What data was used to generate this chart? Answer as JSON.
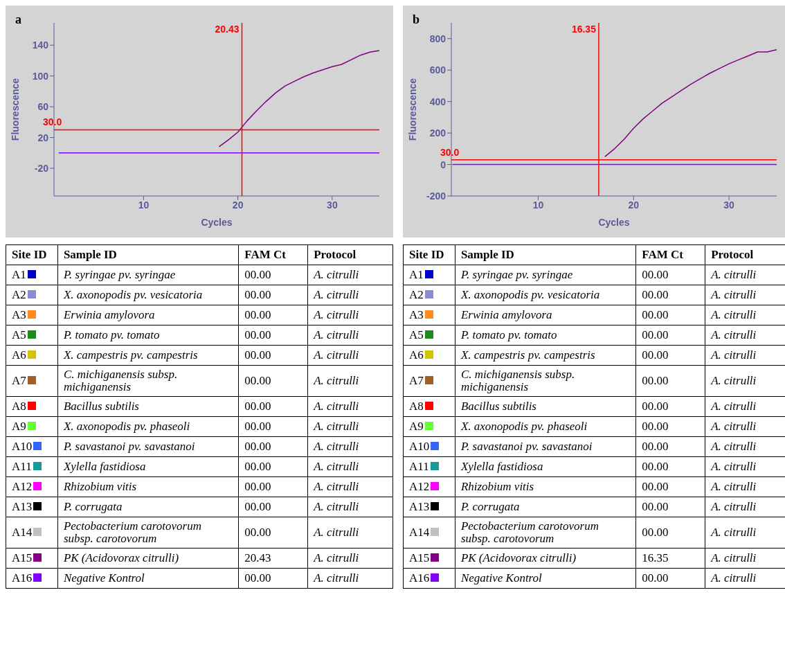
{
  "chart_data": [
    {
      "type": "line",
      "title": "a",
      "xlabel": "Cycles",
      "ylabel": "Fluorescence",
      "x": [
        1,
        5,
        10,
        14,
        15,
        16,
        17,
        18,
        19,
        20,
        21,
        22,
        23,
        24,
        25,
        26,
        27,
        28,
        29,
        30,
        31,
        32,
        33,
        34,
        35
      ],
      "xlim": [
        0.5,
        35
      ],
      "xticks": [
        10,
        20,
        30
      ],
      "ylim": [
        -56,
        169
      ],
      "yticks": [
        -20,
        20,
        60,
        100,
        140
      ],
      "grid": false,
      "legend": "bottom",
      "marker": "none",
      "line_style": "solid",
      "ref_lines": [
        {
          "axis": "x",
          "value": 20.43,
          "label": "20.43",
          "color": "#ff0000"
        },
        {
          "axis": "y",
          "value": 30,
          "label": "30.0",
          "color": "#ff0000"
        }
      ],
      "series": [
        {
          "name": "A1",
          "color": "#0000cc",
          "values": [
            null,
            null,
            null,
            null,
            null,
            null,
            null,
            null,
            null,
            null,
            null,
            null,
            null,
            null,
            null,
            null,
            null,
            null,
            null,
            null,
            null,
            null,
            null,
            null,
            null
          ]
        },
        {
          "name": "A2",
          "color": "#8c8cd0",
          "values": [
            null,
            null,
            null,
            null,
            null,
            null,
            null,
            null,
            null,
            null,
            null,
            null,
            null,
            null,
            null,
            null,
            null,
            null,
            null,
            null,
            null,
            null,
            null,
            null,
            null
          ]
        },
        {
          "name": "A3",
          "color": "#ff8c1a",
          "values": [
            null,
            null,
            null,
            null,
            null,
            null,
            null,
            null,
            null,
            null,
            null,
            null,
            null,
            null,
            null,
            null,
            null,
            null,
            null,
            null,
            null,
            null,
            null,
            null,
            null
          ]
        },
        {
          "name": "A5",
          "color": "#1a8c1a",
          "values": [
            null,
            null,
            null,
            null,
            null,
            null,
            null,
            null,
            null,
            null,
            null,
            null,
            null,
            null,
            null,
            null,
            null,
            null,
            null,
            null,
            null,
            null,
            null,
            null,
            null
          ]
        },
        {
          "name": "A6",
          "color": "#d4c400",
          "values": [
            null,
            null,
            null,
            null,
            null,
            null,
            null,
            null,
            null,
            null,
            null,
            null,
            null,
            null,
            null,
            null,
            null,
            null,
            null,
            null,
            null,
            null,
            null,
            null,
            null
          ]
        },
        {
          "name": "A7",
          "color": "#a0602c",
          "values": [
            null,
            null,
            null,
            null,
            null,
            null,
            null,
            null,
            null,
            null,
            null,
            null,
            null,
            null,
            null,
            null,
            null,
            null,
            null,
            null,
            null,
            null,
            null,
            null,
            null
          ]
        },
        {
          "name": "A8",
          "color": "#ff0000",
          "values": [
            null,
            null,
            null,
            null,
            null,
            null,
            null,
            null,
            null,
            null,
            null,
            null,
            null,
            null,
            null,
            null,
            null,
            null,
            null,
            null,
            null,
            null,
            null,
            null,
            null
          ]
        },
        {
          "name": "A9",
          "color": "#66ff33",
          "values": [
            null,
            null,
            null,
            null,
            null,
            null,
            null,
            null,
            null,
            null,
            null,
            null,
            null,
            null,
            null,
            null,
            null,
            null,
            null,
            null,
            null,
            null,
            null,
            null,
            null
          ]
        },
        {
          "name": "A10",
          "color": "#3366ff",
          "values": [
            null,
            null,
            null,
            null,
            null,
            null,
            null,
            null,
            null,
            null,
            null,
            null,
            null,
            null,
            null,
            null,
            null,
            null,
            null,
            null,
            null,
            null,
            null,
            null,
            null
          ]
        },
        {
          "name": "A11",
          "color": "#1a9999",
          "values": [
            null,
            null,
            null,
            null,
            null,
            null,
            null,
            null,
            null,
            null,
            null,
            null,
            null,
            null,
            null,
            null,
            null,
            null,
            null,
            null,
            null,
            null,
            null,
            null,
            null
          ]
        },
        {
          "name": "A12",
          "color": "#ff00ff",
          "values": [
            null,
            null,
            null,
            null,
            null,
            null,
            null,
            null,
            null,
            null,
            null,
            null,
            null,
            null,
            null,
            null,
            null,
            null,
            null,
            null,
            null,
            null,
            null,
            null,
            null
          ]
        },
        {
          "name": "A13",
          "color": "#000000",
          "values": [
            null,
            null,
            null,
            null,
            null,
            null,
            null,
            null,
            null,
            null,
            null,
            null,
            null,
            null,
            null,
            null,
            null,
            null,
            null,
            null,
            null,
            null,
            null,
            null,
            null
          ]
        },
        {
          "name": "A14",
          "color": "#c0c0c0",
          "values": [
            null,
            null,
            null,
            null,
            null,
            null,
            null,
            null,
            null,
            null,
            null,
            null,
            null,
            null,
            null,
            null,
            null,
            null,
            null,
            null,
            null,
            null,
            null,
            null,
            null
          ]
        },
        {
          "name": "A15",
          "color": "#800080",
          "values": [
            null,
            null,
            null,
            null,
            null,
            null,
            null,
            8,
            17,
            27,
            42,
            55,
            67,
            78,
            87,
            93,
            99,
            104,
            108,
            112,
            115,
            121,
            127,
            131,
            133
          ]
        },
        {
          "name": "A16",
          "color": "#8000ff",
          "values": [
            0,
            0,
            0,
            0,
            0,
            0,
            0,
            0,
            0,
            0,
            0,
            0,
            0,
            0,
            0,
            0,
            0,
            0,
            0,
            0,
            0,
            0,
            0,
            0,
            0
          ]
        }
      ],
      "annotations": [
        "Site ID",
        "Sample ID",
        "FAM Ct",
        "Protocol",
        "P. syringae pv. syringae",
        "00.00",
        "A. citrulli",
        "X. axonopodis pv. vesicatoria",
        "00.00",
        "A. citrulli",
        "Erwinia amylovora",
        "00.00",
        "A. citrulli",
        "P. tomato pv. tomato",
        "00.00",
        "A. citrulli",
        "X. campestris pv. campestris",
        "00.00",
        "A. citrulli",
        "C. michiganensis subsp. michiganensis",
        "00.00",
        "A. citrulli",
        "Bacillus subtilis",
        "00.00",
        "A. citrulli",
        "X. axonopodis pv. phaseoli",
        "00.00",
        "A. citrulli",
        "P. savastanoi pv. savastanoi",
        "00.00",
        "A. citrulli",
        "Xylella fastidiosa",
        "00.00",
        "A. citrulli",
        "Rhizobium vitis",
        "00.00",
        "A. citrulli",
        "P. corrugata",
        "00.00",
        "A. citrulli",
        "Pectobacterium carotovorum subsp. carotovorum",
        "00.00",
        "A. citrulli",
        "PK (Acidovorax citrulli)",
        "20.43",
        "A. citrulli",
        "Negative Kontrol",
        "00.00",
        "A. citrulli"
      ]
    },
    {
      "type": "line",
      "title": "b",
      "xlabel": "Cycles",
      "ylabel": "Fluorescence",
      "x": [
        1,
        5,
        10,
        14,
        15,
        16,
        17,
        18,
        19,
        20,
        21,
        22,
        23,
        24,
        25,
        26,
        27,
        28,
        29,
        30,
        31,
        32,
        33,
        34,
        35
      ],
      "xlim": [
        0.9,
        35
      ],
      "xticks": [
        10,
        20,
        30
      ],
      "ylim": [
        -200,
        900
      ],
      "yticks": [
        -200,
        0,
        200,
        400,
        600,
        800
      ],
      "grid": false,
      "legend": "bottom",
      "marker": "none",
      "line_style": "solid",
      "ref_lines": [
        {
          "axis": "x",
          "value": 16.35,
          "label": "16.35",
          "color": "#ff0000"
        },
        {
          "axis": "y",
          "value": 30,
          "label": "30.0",
          "color": "#ff0000"
        }
      ],
      "series": [
        {
          "name": "A1",
          "color": "#0000cc",
          "values": [
            null,
            null,
            null,
            null,
            null,
            null,
            null,
            null,
            null,
            null,
            null,
            null,
            null,
            null,
            null,
            null,
            null,
            null,
            null,
            null,
            null,
            null,
            null,
            null,
            null
          ]
        },
        {
          "name": "A2",
          "color": "#8c8cd0",
          "values": [
            null,
            null,
            null,
            null,
            null,
            null,
            null,
            null,
            null,
            null,
            null,
            null,
            null,
            null,
            null,
            null,
            null,
            null,
            null,
            null,
            null,
            null,
            null,
            null,
            null
          ]
        },
        {
          "name": "A3",
          "color": "#ff8c1a",
          "values": [
            null,
            null,
            null,
            null,
            null,
            null,
            null,
            null,
            null,
            null,
            null,
            null,
            null,
            null,
            null,
            null,
            null,
            null,
            null,
            null,
            null,
            null,
            null,
            null,
            null
          ]
        },
        {
          "name": "A5",
          "color": "#1a8c1a",
          "values": [
            null,
            null,
            null,
            null,
            null,
            null,
            null,
            null,
            null,
            null,
            null,
            null,
            null,
            null,
            null,
            null,
            null,
            null,
            null,
            null,
            null,
            null,
            null,
            null,
            null
          ]
        },
        {
          "name": "A6",
          "color": "#d4c400",
          "values": [
            null,
            null,
            null,
            null,
            null,
            null,
            null,
            null,
            null,
            null,
            null,
            null,
            null,
            null,
            null,
            null,
            null,
            null,
            null,
            null,
            null,
            null,
            null,
            null,
            null
          ]
        },
        {
          "name": "A7",
          "color": "#a0602c",
          "values": [
            null,
            null,
            null,
            null,
            null,
            null,
            null,
            null,
            null,
            null,
            null,
            null,
            null,
            null,
            null,
            null,
            null,
            null,
            null,
            null,
            null,
            null,
            null,
            null,
            null
          ]
        },
        {
          "name": "A8",
          "color": "#ff0000",
          "values": [
            null,
            null,
            null,
            null,
            null,
            null,
            null,
            null,
            null,
            null,
            null,
            null,
            null,
            null,
            null,
            null,
            null,
            null,
            null,
            null,
            null,
            null,
            null,
            null,
            null
          ]
        },
        {
          "name": "A9",
          "color": "#66ff33",
          "values": [
            null,
            null,
            null,
            null,
            null,
            null,
            null,
            null,
            null,
            null,
            null,
            null,
            null,
            null,
            null,
            null,
            null,
            null,
            null,
            null,
            null,
            null,
            null,
            null,
            null
          ]
        },
        {
          "name": "A10",
          "color": "#3366ff",
          "values": [
            null,
            null,
            null,
            null,
            null,
            null,
            null,
            null,
            null,
            null,
            null,
            null,
            null,
            null,
            null,
            null,
            null,
            null,
            null,
            null,
            null,
            null,
            null,
            null,
            null
          ]
        },
        {
          "name": "A11",
          "color": "#1a9999",
          "values": [
            null,
            null,
            null,
            null,
            null,
            null,
            null,
            null,
            null,
            null,
            null,
            null,
            null,
            null,
            null,
            null,
            null,
            null,
            null,
            null,
            null,
            null,
            null,
            null,
            null
          ]
        },
        {
          "name": "A12",
          "color": "#ff00ff",
          "values": [
            null,
            null,
            null,
            null,
            null,
            null,
            null,
            null,
            null,
            null,
            null,
            null,
            null,
            null,
            null,
            null,
            null,
            null,
            null,
            null,
            null,
            null,
            null,
            null,
            null
          ]
        },
        {
          "name": "A13",
          "color": "#000000",
          "values": [
            null,
            null,
            null,
            null,
            null,
            null,
            null,
            null,
            null,
            null,
            null,
            null,
            null,
            null,
            null,
            null,
            null,
            null,
            null,
            null,
            null,
            null,
            null,
            null,
            null
          ]
        },
        {
          "name": "A14",
          "color": "#c0c0c0",
          "values": [
            null,
            null,
            null,
            null,
            null,
            null,
            null,
            null,
            null,
            null,
            null,
            null,
            null,
            null,
            null,
            null,
            null,
            null,
            null,
            null,
            null,
            null,
            null,
            null,
            null
          ]
        },
        {
          "name": "A15",
          "color": "#800080",
          "values": [
            null,
            null,
            null,
            null,
            null,
            null,
            50,
            100,
            160,
            230,
            290,
            340,
            390,
            430,
            470,
            510,
            545,
            580,
            610,
            640,
            665,
            690,
            715,
            715,
            730
          ]
        },
        {
          "name": "A16",
          "color": "#8000ff",
          "values": [
            0,
            0,
            0,
            0,
            0,
            0,
            0,
            0,
            0,
            0,
            0,
            0,
            0,
            0,
            0,
            0,
            0,
            0,
            0,
            0,
            0,
            0,
            0,
            0,
            0
          ]
        }
      ],
      "annotations": [
        "Site ID",
        "Sample ID",
        "FAM Ct",
        "Protocol",
        "P. syringae pv. syringae",
        "00.00",
        "A. citrulli",
        "X. axonopodis pv. vesicatoria",
        "00.00",
        "A. citrulli",
        "Erwinia amylovora",
        "00.00",
        "A. citrulli",
        "P. tomato pv. tomato",
        "00.00",
        "A. citrulli",
        "X. campestris pv. campestris",
        "00.00",
        "A. citrulli",
        "C. michiganensis subsp. michiganensis",
        "00.00",
        "A. citrulli",
        "Bacillus subtilis",
        "00.00",
        "A. citrulli",
        "X. axonopodis pv. phaseoli",
        "00.00",
        "A. citrulli",
        "P. savastanoi pv. savastanoi",
        "00.00",
        "A. citrulli",
        "Xylella fastidiosa",
        "00.00",
        "A. citrulli",
        "Rhizobium vitis",
        "00.00",
        "A. citrulli",
        "P. corrugata",
        "00.00",
        "A. citrulli",
        "Pectobacterium carotovorum subsp. carotovorum",
        "00.00",
        "A. citrulli",
        "PK (Acidovorax citrulli)",
        "16.35",
        "A. citrulli",
        "Negative Kontrol",
        "00.00",
        "A. citrulli"
      ]
    }
  ]
}
